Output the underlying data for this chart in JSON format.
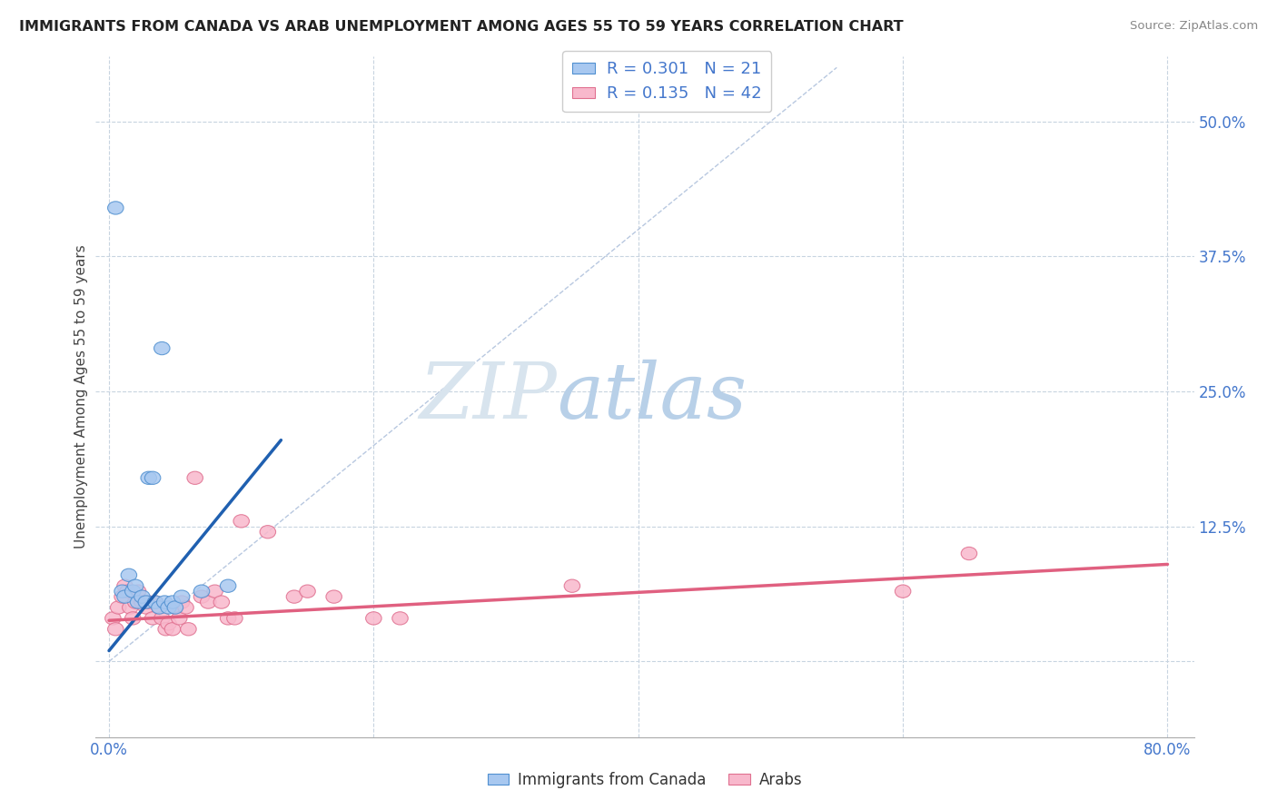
{
  "title": "IMMIGRANTS FROM CANADA VS ARAB UNEMPLOYMENT AMONG AGES 55 TO 59 YEARS CORRELATION CHART",
  "source": "Source: ZipAtlas.com",
  "ylabel": "Unemployment Among Ages 55 to 59 years",
  "xlim": [
    -0.01,
    0.82
  ],
  "ylim": [
    -0.07,
    0.56
  ],
  "ytick_positions": [
    0.0,
    0.125,
    0.25,
    0.375,
    0.5
  ],
  "ytick_labels_right": [
    "",
    "12.5%",
    "25.0%",
    "37.5%",
    "50.0%"
  ],
  "legend_r1": "R = 0.301",
  "legend_n1": "N = 21",
  "legend_r2": "R = 0.135",
  "legend_n2": "N = 42",
  "color_blue_face": "#a8c8f0",
  "color_blue_edge": "#5090d0",
  "color_blue_line": "#2060b0",
  "color_pink_face": "#f8b8cc",
  "color_pink_edge": "#e07090",
  "color_pink_line": "#e06080",
  "color_diag": "#b8c8e0",
  "watermark_zip": "ZIP",
  "watermark_atlas": "atlas",
  "blue_x": [
    0.005,
    0.01,
    0.012,
    0.015,
    0.018,
    0.02,
    0.022,
    0.025,
    0.028,
    0.03,
    0.033,
    0.035,
    0.038,
    0.04,
    0.042,
    0.045,
    0.048,
    0.05,
    0.055,
    0.07,
    0.09
  ],
  "blue_y": [
    0.42,
    0.065,
    0.06,
    0.08,
    0.065,
    0.07,
    0.055,
    0.06,
    0.055,
    0.17,
    0.17,
    0.055,
    0.05,
    0.29,
    0.055,
    0.05,
    0.055,
    0.05,
    0.06,
    0.065,
    0.07
  ],
  "pink_x": [
    0.003,
    0.005,
    0.007,
    0.01,
    0.012,
    0.014,
    0.016,
    0.018,
    0.02,
    0.022,
    0.025,
    0.028,
    0.03,
    0.033,
    0.035,
    0.038,
    0.04,
    0.043,
    0.045,
    0.048,
    0.05,
    0.053,
    0.055,
    0.058,
    0.06,
    0.065,
    0.07,
    0.075,
    0.08,
    0.085,
    0.09,
    0.095,
    0.1,
    0.12,
    0.14,
    0.15,
    0.17,
    0.2,
    0.22,
    0.35,
    0.6,
    0.65
  ],
  "pink_y": [
    0.04,
    0.03,
    0.05,
    0.06,
    0.07,
    0.065,
    0.05,
    0.04,
    0.055,
    0.065,
    0.055,
    0.05,
    0.055,
    0.04,
    0.055,
    0.05,
    0.04,
    0.03,
    0.035,
    0.03,
    0.05,
    0.04,
    0.055,
    0.05,
    0.03,
    0.17,
    0.06,
    0.055,
    0.065,
    0.055,
    0.04,
    0.04,
    0.13,
    0.12,
    0.06,
    0.065,
    0.06,
    0.04,
    0.04,
    0.07,
    0.065,
    0.1
  ],
  "blue_line_x": [
    0.0,
    0.13
  ],
  "blue_line_y": [
    0.01,
    0.205
  ],
  "pink_line_x": [
    0.0,
    0.8
  ],
  "pink_line_y": [
    0.038,
    0.09
  ]
}
